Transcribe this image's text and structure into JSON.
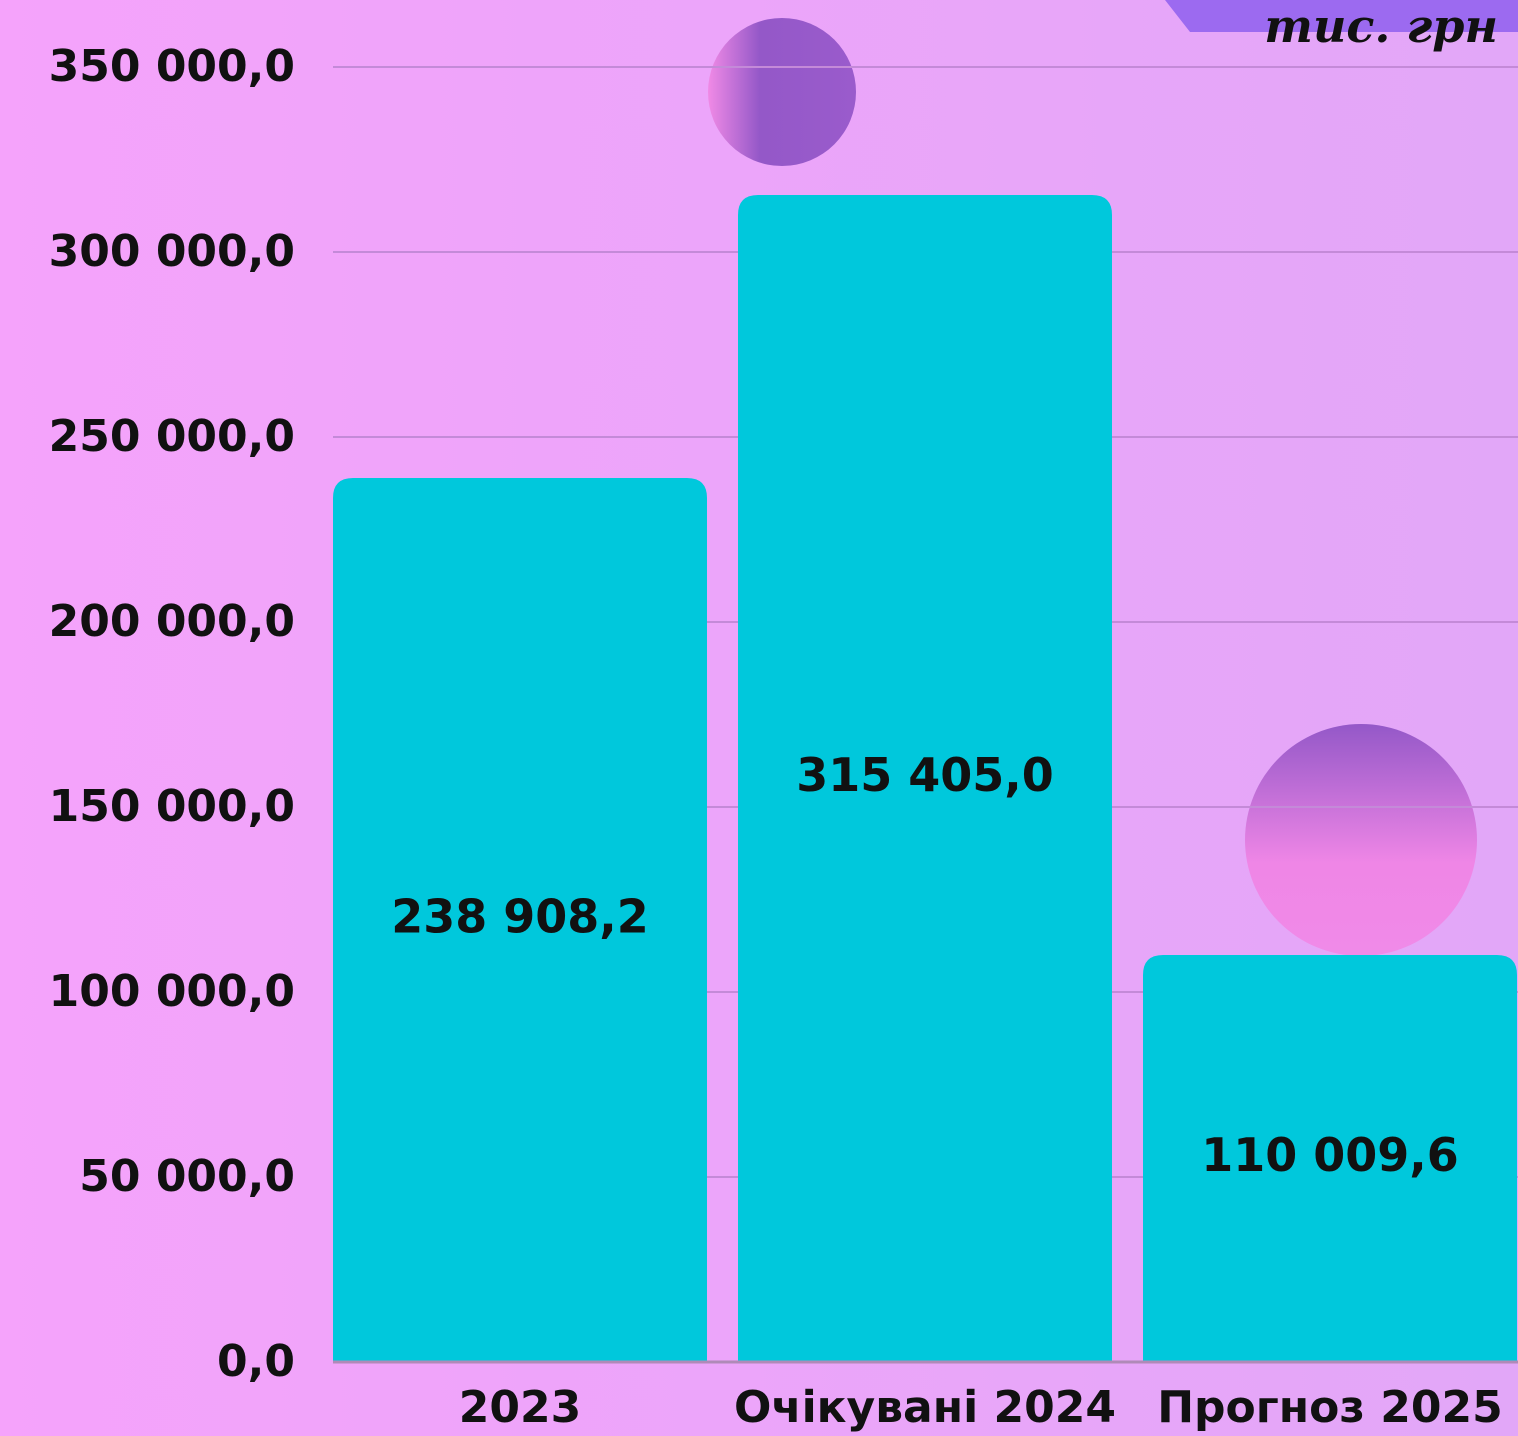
{
  "chart_data": {
    "type": "bar",
    "unit": "тис. грн",
    "categories": [
      "2023",
      "Очікувані 2024",
      "Прогноз 2025"
    ],
    "values": [
      238908.2,
      315405.0,
      110009.6
    ],
    "value_labels": [
      "238 908,2",
      "315 405,0",
      "110 009,6"
    ],
    "color": "#00c8dc",
    "ylim": [
      0,
      350000
    ],
    "yticks": [
      {
        "value": 0,
        "label": "0,0"
      },
      {
        "value": 50000,
        "label": "50 000,0"
      },
      {
        "value": 100000,
        "label": "100 000,0"
      },
      {
        "value": 150000,
        "label": "150 000,0"
      },
      {
        "value": 200000,
        "label": "200 000,0"
      },
      {
        "value": 250000,
        "label": "250 000,0"
      },
      {
        "value": 300000,
        "label": "300 000,0"
      },
      {
        "value": 350000,
        "label": "350 000,0"
      }
    ],
    "grid": true
  }
}
